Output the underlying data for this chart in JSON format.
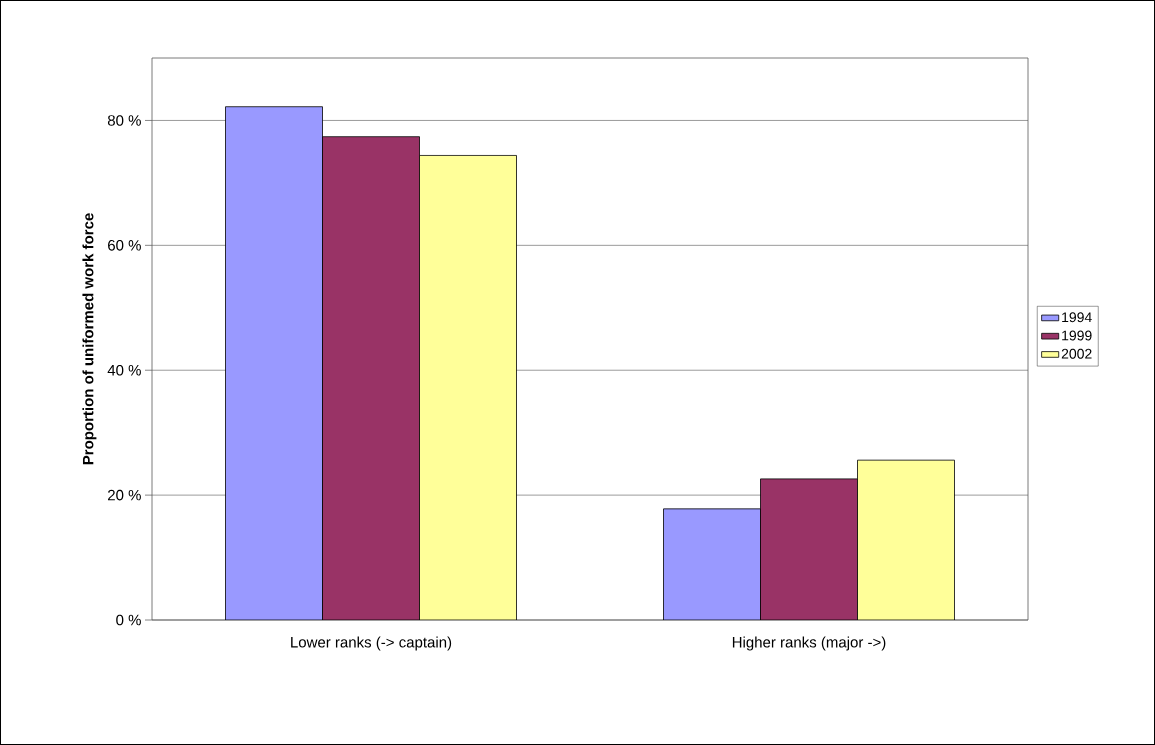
{
  "chart_data": {
    "type": "bar",
    "ylabel": "Proportion of uniformed work force",
    "categories": [
      "Lower ranks (-> captain)",
      "Higher ranks (major ->)"
    ],
    "series": [
      {
        "name": "1994",
        "color": "#9999ff",
        "values": [
          82.2,
          17.8
        ]
      },
      {
        "name": "1999",
        "color": "#993366",
        "values": [
          77.4,
          22.6
        ]
      },
      {
        "name": "2002",
        "color": "#ffff99",
        "values": [
          74.4,
          25.6
        ]
      }
    ],
    "ylim": [
      0,
      90
    ],
    "yticks": [
      {
        "value": 0,
        "label": "0 %"
      },
      {
        "value": 20,
        "label": "20 %"
      },
      {
        "value": 40,
        "label": "40 %"
      },
      {
        "value": 60,
        "label": "60 %"
      },
      {
        "value": 80,
        "label": "80 %"
      }
    ],
    "grid": "y",
    "legend": "right"
  }
}
